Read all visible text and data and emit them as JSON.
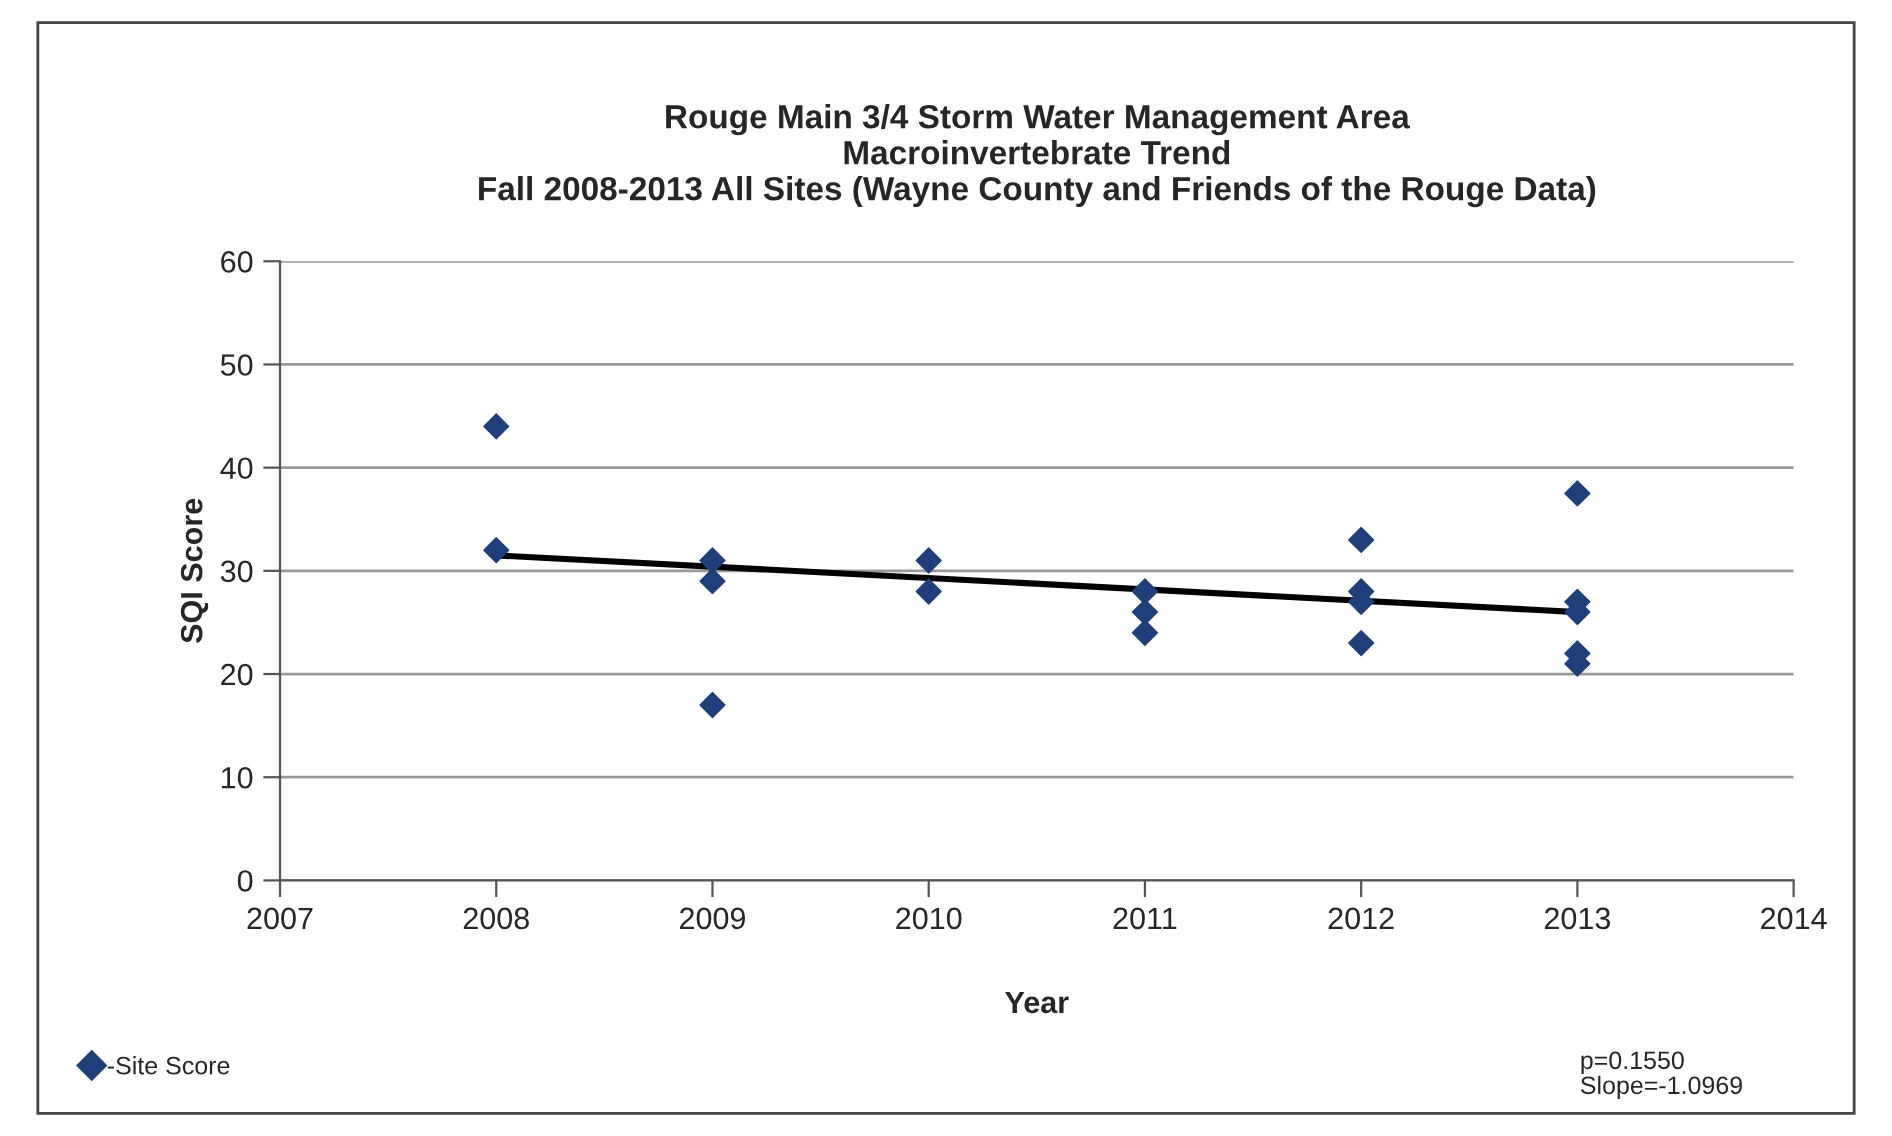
{
  "chart_data": {
    "type": "scatter",
    "title": "Rouge Main 3/4 Storm Water Management Area\nMacroinvertebrate Trend\nFall 2008-2013 All Sites (Wayne County and Friends of the Rouge Data)",
    "xlabel": "Year",
    "ylabel": "SQI Score",
    "xlim": [
      2007,
      2014
    ],
    "xticks": [
      2007,
      2008,
      2009,
      2010,
      2011,
      2012,
      2013,
      2014
    ],
    "ylim": [
      0,
      60
    ],
    "yticks": [
      0,
      10,
      20,
      30,
      40,
      50,
      60
    ],
    "grid": "y",
    "legend": "bottom left",
    "series": [
      {
        "name": "-Site Score",
        "marker": "diamond",
        "color": "#1f3f7a",
        "x": [
          2008,
          2008,
          2009,
          2009,
          2009,
          2010,
          2010,
          2011,
          2011,
          2011,
          2012,
          2012,
          2012,
          2012,
          2013,
          2013,
          2013,
          2013,
          2013
        ],
        "values": [
          44,
          32,
          31,
          29,
          17,
          31,
          28,
          28,
          26,
          24,
          33,
          28,
          27,
          23,
          37.5,
          27,
          26,
          22,
          21
        ]
      },
      {
        "type": "line",
        "color": "#000000",
        "x": [
          2008,
          2013
        ],
        "values": [
          31.5,
          26
        ]
      }
    ],
    "annotations": [
      "p=0.1550",
      "Slope=-1.0969"
    ]
  }
}
